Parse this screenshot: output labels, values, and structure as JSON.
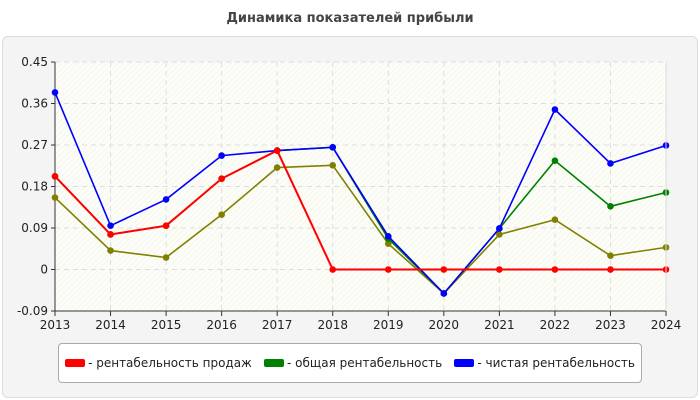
{
  "chart_data": {
    "type": "line",
    "title": "Динамика показателей прибыли",
    "x": [
      2013,
      2014,
      2015,
      2016,
      2017,
      2018,
      2019,
      2020,
      2021,
      2022,
      2023,
      2024
    ],
    "ylim": [
      -0.09,
      0.45
    ],
    "yticks": [
      "0.45",
      "0.36",
      "0.27",
      "0.18",
      "0.09",
      "0",
      "-0.09"
    ],
    "ytick_values": [
      0.45,
      0.36,
      0.27,
      0.18,
      0.09,
      0,
      -0.09
    ],
    "grid": true,
    "legend_position": "bottom",
    "series": [
      {
        "name": "- рентабельность продаж",
        "color": "#ff0000",
        "values": [
          0.202,
          0.076,
          0.095,
          0.197,
          0.258,
          0,
          0,
          0,
          0,
          0,
          0,
          0
        ]
      },
      {
        "color": "#808000",
        "values": [
          0.156,
          0.041,
          0.026,
          0.119,
          0.221,
          0.226,
          0.056,
          -0.052,
          0.076,
          0.108,
          0.03,
          0.048
        ]
      },
      {
        "name": "- общая рентабельность",
        "color": "#008000",
        "values": [
          0.202,
          0.076,
          0.095,
          0.197,
          0.258,
          0.265,
          0.067,
          -0.052,
          0.089,
          0.236,
          0.137,
          0.167
        ]
      },
      {
        "name": "- чистая рентабельность",
        "color": "#0000ff",
        "values": [
          0.384,
          0.095,
          0.152,
          0.247,
          0.258,
          0.265,
          0.072,
          -0.052,
          0.089,
          0.347,
          0.23,
          0.269
        ]
      }
    ]
  }
}
